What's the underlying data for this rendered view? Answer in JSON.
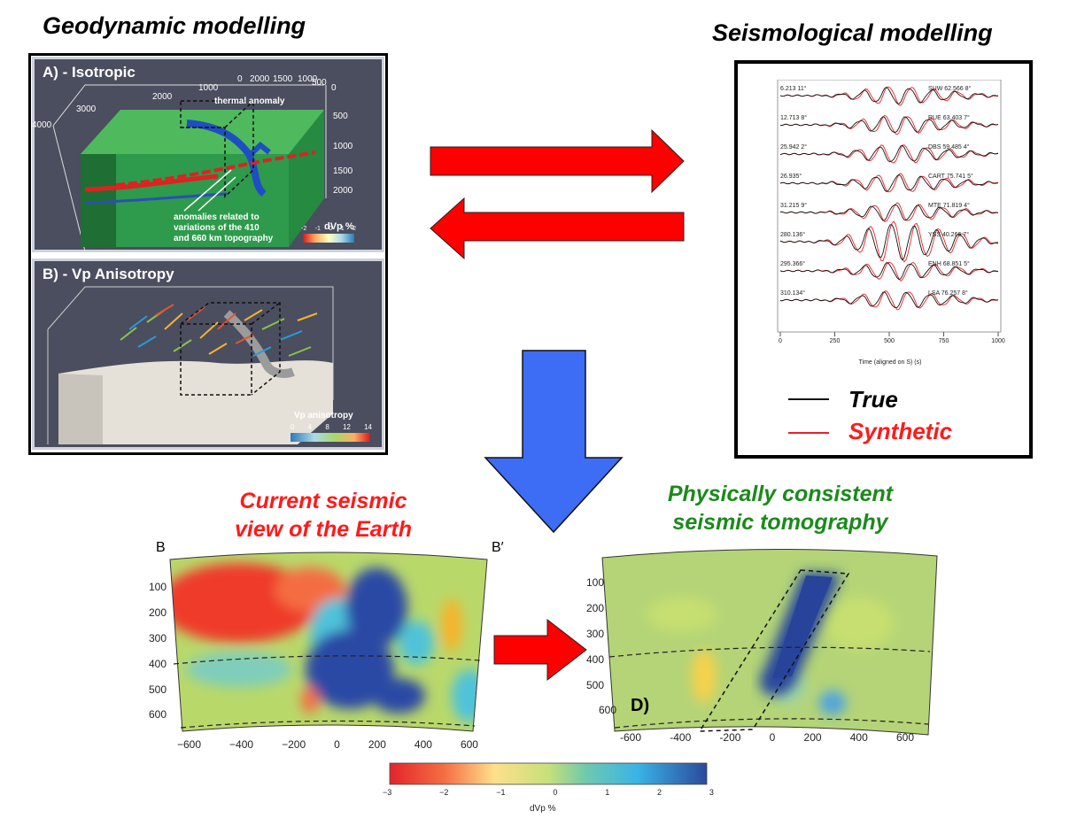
{
  "headings": {
    "geodynamic": "Geodynamic modelling",
    "seismological": "Seismological modelling",
    "current_view": [
      "Current seismic",
      "view of the Earth"
    ],
    "consistent": [
      "Physically consistent",
      "seismic tomography"
    ]
  },
  "panel_a": {
    "label": "A) - Isotropic",
    "thermal": "thermal anomaly",
    "anomalies": [
      "anomalies related to",
      "variations of the 410",
      "and 660 km topography"
    ],
    "colorbar_title": "dVp %",
    "colorbar_ticks": [
      "-2",
      "-1",
      "0",
      "1",
      "2"
    ],
    "axis_top": [
      "0",
      "2000",
      "1500",
      "1000",
      "500",
      "0"
    ],
    "axis_left": [
      "4000",
      "3000",
      "2000",
      "1000"
    ],
    "depth_ticks": [
      "500",
      "1000",
      "1500",
      "2000"
    ]
  },
  "panel_b": {
    "label": "B) - Vp Anisotropy",
    "colorbar_title": "Vp anisotropy",
    "colorbar_ticks": [
      "0",
      "4",
      "8",
      "12",
      "14"
    ]
  },
  "seismo": {
    "traces": [
      {
        "left": "6.213 11°",
        "right": "SUW 62.566 8°"
      },
      {
        "left": "12.713 8°",
        "right": "RUE 63.403 7°"
      },
      {
        "left": "25.942 2°",
        "right": "DBS 59.485 4°"
      },
      {
        "left": "26.935°",
        "right": "CART 75.741 5°"
      },
      {
        "left": "31.215 9°",
        "right": "MTE 71.819 4°"
      },
      {
        "left": "280.136°",
        "right": "YSS 40.266 7°"
      },
      {
        "left": "295.366°",
        "right": "ENH 68.851 5°"
      },
      {
        "left": "310.134°",
        "right": "LSA 76.257 8°"
      }
    ],
    "x_ticks": [
      "0",
      "250",
      "500",
      "750",
      "1000"
    ],
    "x_label": "Time (aligned on S) (s)",
    "legend_true": "True",
    "legend_synthetic": "Synthetic",
    "colors": {
      "true": "#111111",
      "synthetic": "#e8202a"
    }
  },
  "section_c": {
    "label_left": "B",
    "label_right": "B′",
    "depth_ticks": [
      "100",
      "200",
      "300",
      "400",
      "500",
      "600"
    ],
    "x_ticks": [
      "−600",
      "−400",
      "−200",
      "0",
      "200",
      "400",
      "600"
    ]
  },
  "section_d": {
    "label": "D)",
    "depth_ticks": [
      "100",
      "200",
      "300",
      "400",
      "500",
      "600"
    ],
    "x_ticks": [
      "-600",
      "-400",
      "-200",
      "0",
      "200",
      "400",
      "600"
    ]
  },
  "colorbar": {
    "ticks": [
      "−3",
      "−2",
      "−1",
      "0",
      "1",
      "2",
      "3"
    ],
    "title": "dVp %"
  },
  "colors": {
    "arrow_red": "#ff0000",
    "arrow_blue": "#3d6cf5"
  }
}
